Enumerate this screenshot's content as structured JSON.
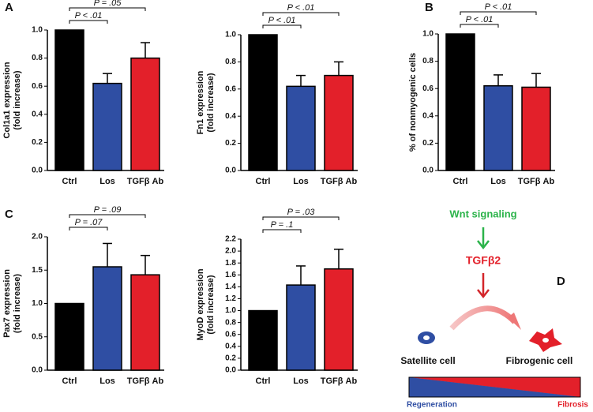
{
  "panel_labels": [
    "A",
    "B",
    "C",
    "D"
  ],
  "chart_data": [
    {
      "type": "bar",
      "ylabel": [
        "Col1a1 expression",
        "(fold increase)"
      ],
      "categories": [
        "Ctrl",
        "Los",
        "TGFβ Ab"
      ],
      "values": [
        1.0,
        0.62,
        0.8
      ],
      "errors": [
        0,
        0.07,
        0.11
      ],
      "colors": [
        "#000000",
        "#2f4ea3",
        "#e3202a"
      ],
      "ylim": [
        0,
        1.0
      ],
      "yticks": [
        {
          "value": 0,
          "label": "0.0"
        },
        0.2,
        0.4,
        0.6,
        0.8,
        {
          "value": 1,
          "label": "1.0"
        }
      ],
      "annotations": [
        "P < .01",
        "P = .05"
      ]
    },
    {
      "type": "bar",
      "ylabel": [
        "Fn1 expression",
        "(fold increase)"
      ],
      "categories": [
        "Ctrl",
        "Los",
        "TGFβ Ab"
      ],
      "values": [
        1.0,
        0.62,
        0.7
      ],
      "errors": [
        0,
        0.08,
        0.1
      ],
      "colors": [
        "#000000",
        "#2f4ea3",
        "#e3202a"
      ],
      "ylim": [
        0,
        1.0
      ],
      "yticks": [
        {
          "value": 0,
          "label": "0.0"
        },
        0.2,
        0.4,
        0.6,
        0.8,
        {
          "value": 1,
          "label": "1.0"
        }
      ],
      "annotations": [
        "P < .01",
        "P < .01"
      ]
    },
    {
      "type": "bar",
      "ylabel": [
        "% of nonmyogenic cells"
      ],
      "categories": [
        "Ctrl",
        "Los",
        "TGFβ Ab"
      ],
      "values": [
        1.0,
        0.62,
        0.61
      ],
      "errors": [
        0,
        0.08,
        0.1
      ],
      "colors": [
        "#000000",
        "#2f4ea3",
        "#e3202a"
      ],
      "ylim": [
        0,
        1.0
      ],
      "yticks": [
        {
          "value": 0,
          "label": "0.0"
        },
        0.2,
        0.4,
        0.6,
        0.8,
        {
          "value": 1,
          "label": "1.0"
        }
      ],
      "annotations": [
        "P < .01",
        "P < .01"
      ]
    },
    {
      "type": "bar",
      "ylabel": [
        "Pax7 expression",
        "(fold increase)"
      ],
      "categories": [
        "Ctrl",
        "Los",
        "TGFβ Ab"
      ],
      "values": [
        1.0,
        1.55,
        1.43
      ],
      "errors": [
        0,
        0.35,
        0.29
      ],
      "colors": [
        "#000000",
        "#2f4ea3",
        "#e3202a"
      ],
      "ylim": [
        0,
        2.0
      ],
      "yticks": [
        {
          "value": 0,
          "label": "0.0"
        },
        0.5,
        {
          "value": 1,
          "label": "1.0"
        },
        1.5,
        {
          "value": 2,
          "label": "2.0"
        }
      ],
      "annotations": [
        "P = .07",
        "P = .09"
      ]
    },
    {
      "type": "bar",
      "ylabel": [
        "MyoD expression",
        "(fold increase)"
      ],
      "categories": [
        "Ctrl",
        "Los",
        "TGFβ Ab"
      ],
      "values": [
        1.0,
        1.43,
        1.7
      ],
      "errors": [
        0,
        0.32,
        0.33
      ],
      "colors": [
        "#000000",
        "#2f4ea3",
        "#e3202a"
      ],
      "ylim": [
        0,
        2.2
      ],
      "yticks": [
        {
          "value": 0,
          "label": "0.0"
        },
        0.2,
        0.4,
        0.6,
        0.8,
        {
          "value": 1,
          "label": "1.0"
        },
        1.2,
        1.4,
        1.6,
        1.8,
        {
          "value": 2,
          "label": "2.0"
        },
        2.2
      ],
      "annotations": [
        "P = .1",
        "P = .03"
      ]
    }
  ],
  "diagram": {
    "signal": "Wnt signaling",
    "mediator": "TGFβ2",
    "source_cell": "Satellite cell",
    "target_cell": "Fibrogenic cell",
    "left_end": "Regeneration",
    "right_end": "Fibrosis"
  }
}
